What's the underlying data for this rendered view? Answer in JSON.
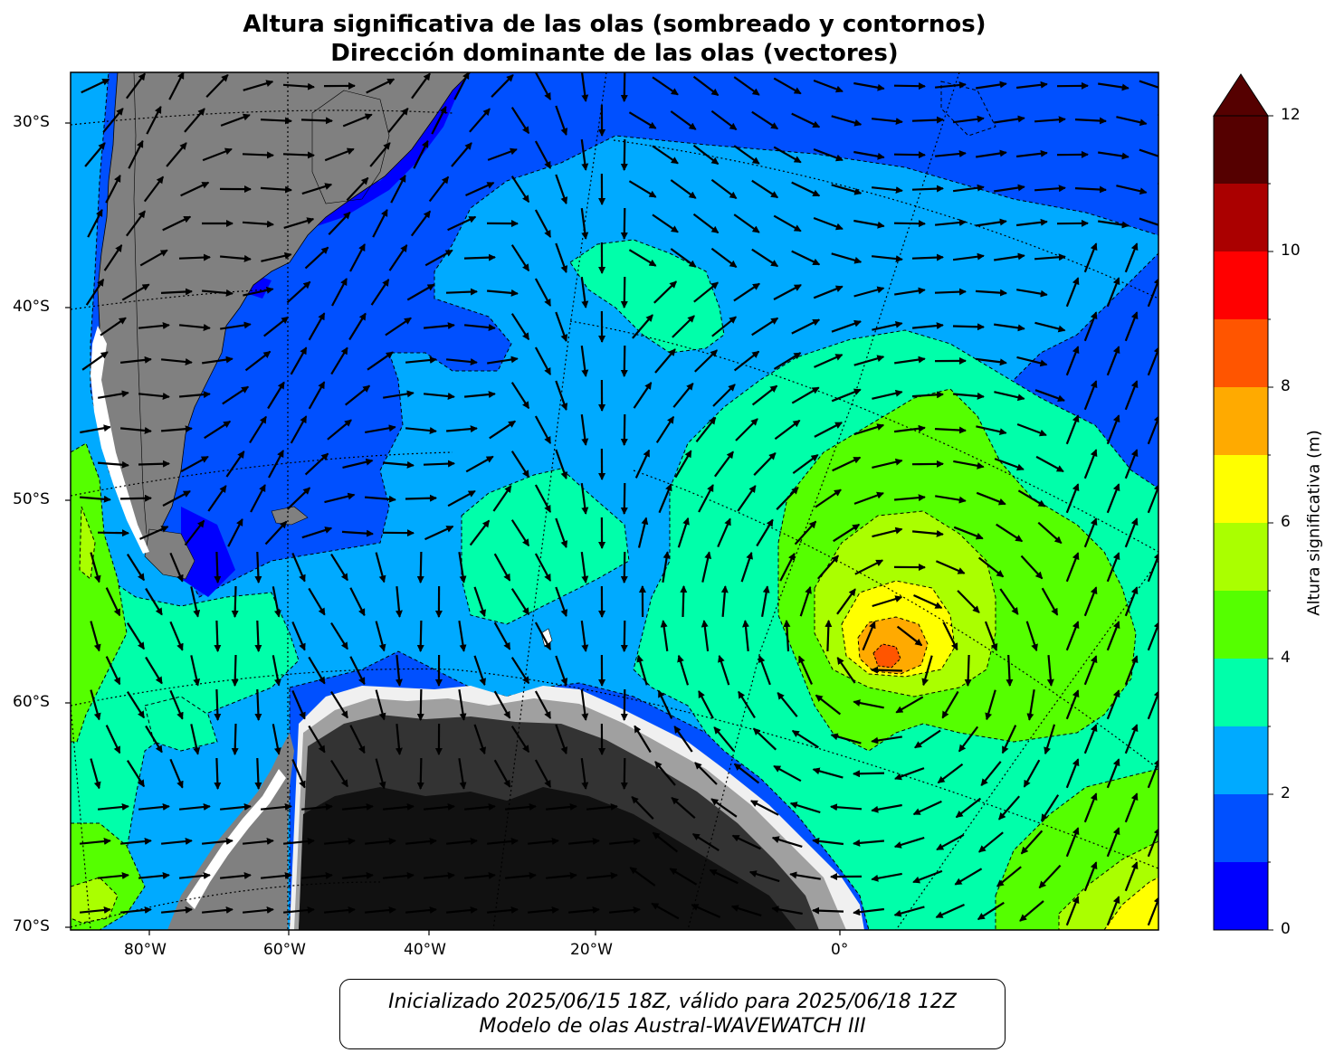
{
  "title": {
    "line1": "Altura significativa de las olas (sombreado y contornos)",
    "line2": "Dirección dominante de las olas (vectores)"
  },
  "lat_labels": [
    "30°S",
    "40°S",
    "50°S",
    "60°S",
    "70°S"
  ],
  "lon_labels": [
    "80°W",
    "60°W",
    "40°W",
    "20°W",
    "0°"
  ],
  "colorbar": {
    "label": "Altura significativa (m)",
    "tick_labels": [
      "0",
      "2",
      "4",
      "6",
      "8",
      "10",
      "12"
    ],
    "colors": [
      "#0000ff",
      "#0050ff",
      "#00aaff",
      "#00ffaa",
      "#55ff00",
      "#aaff00",
      "#ffff00",
      "#ffaa00",
      "#ff5500",
      "#ff0000",
      "#aa0000",
      "#550000"
    ]
  },
  "colors": {
    "land": "#808080",
    "antarctica_dark": "#111111",
    "antarctica_mid": "#333333"
  },
  "footer": {
    "line1": "Inicializado 2025/06/15 18Z, válido para 2025/06/18 12Z",
    "line2": "Modelo de olas Austral-WAVEWATCH III"
  }
}
